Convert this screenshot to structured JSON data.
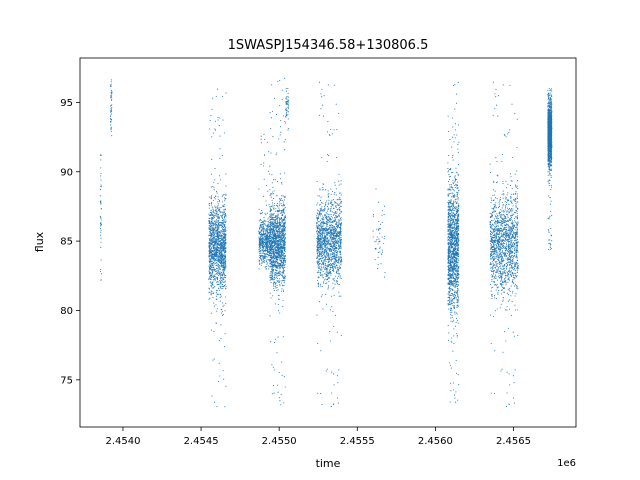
{
  "chart_data": {
    "type": "scatter",
    "title": "1SWASPJ154346.58+130806.5",
    "xlabel": "time",
    "ylabel": "flux",
    "x_offset_label": "1e6",
    "xlim": [
      2453725,
      2456900
    ],
    "ylim": [
      71.6,
      98.2
    ],
    "x_ticks": [
      2454000,
      2454500,
      2455000,
      2455500,
      2456000,
      2456500
    ],
    "x_tick_labels": [
      "2.4540",
      "2.4545",
      "2.4550",
      "2.4555",
      "2.4560",
      "2.4565"
    ],
    "y_ticks": [
      75,
      80,
      85,
      90,
      95
    ],
    "y_tick_labels": [
      "75",
      "80",
      "85",
      "90",
      "95"
    ],
    "grid": false,
    "marker_color": "#1f77b4",
    "clusters": [
      {
        "x_start": 2453855,
        "x_end": 2453862,
        "y_center": 87.0,
        "y_spread": 3.0,
        "y_min": 82.2,
        "y_max": 91.2,
        "density": "sparse"
      },
      {
        "x_start": 2453920,
        "x_end": 2453930,
        "y_center": 94.5,
        "y_spread": 1.2,
        "y_min": 92.6,
        "y_max": 96.8,
        "density": "sparse"
      },
      {
        "x_start": 2454550,
        "x_end": 2454660,
        "y_center": 84.5,
        "y_spread": 1.6,
        "y_min": 73.0,
        "y_max": 96.0,
        "density": "dense"
      },
      {
        "x_start": 2454870,
        "x_end": 2454940,
        "y_center": 85.0,
        "y_spread": 0.8,
        "y_min": 83.0,
        "y_max": 93.0,
        "density": "medium"
      },
      {
        "x_start": 2454940,
        "x_end": 2455040,
        "y_center": 84.8,
        "y_spread": 1.4,
        "y_min": 72.8,
        "y_max": 96.8,
        "density": "dense"
      },
      {
        "x_start": 2455040,
        "x_end": 2455060,
        "y_center": 94.6,
        "y_spread": 0.6,
        "y_min": 93.0,
        "y_max": 96.0,
        "density": "sparse"
      },
      {
        "x_start": 2455240,
        "x_end": 2455400,
        "y_center": 85.0,
        "y_spread": 1.5,
        "y_min": 72.8,
        "y_max": 97.0,
        "density": "dense"
      },
      {
        "x_start": 2455600,
        "x_end": 2455680,
        "y_center": 84.8,
        "y_spread": 1.2,
        "y_min": 81.5,
        "y_max": 97.0,
        "density": "sparse"
      },
      {
        "x_start": 2456080,
        "x_end": 2456150,
        "y_center": 84.5,
        "y_spread": 2.2,
        "y_min": 73.0,
        "y_max": 96.5,
        "density": "dense"
      },
      {
        "x_start": 2456350,
        "x_end": 2456530,
        "y_center": 84.8,
        "y_spread": 1.8,
        "y_min": 72.8,
        "y_max": 97.0,
        "density": "dense"
      },
      {
        "x_start": 2456720,
        "x_end": 2456745,
        "y_center": 92.8,
        "y_spread": 1.1,
        "y_min": 84.2,
        "y_max": 96.0,
        "density": "dense"
      }
    ]
  }
}
